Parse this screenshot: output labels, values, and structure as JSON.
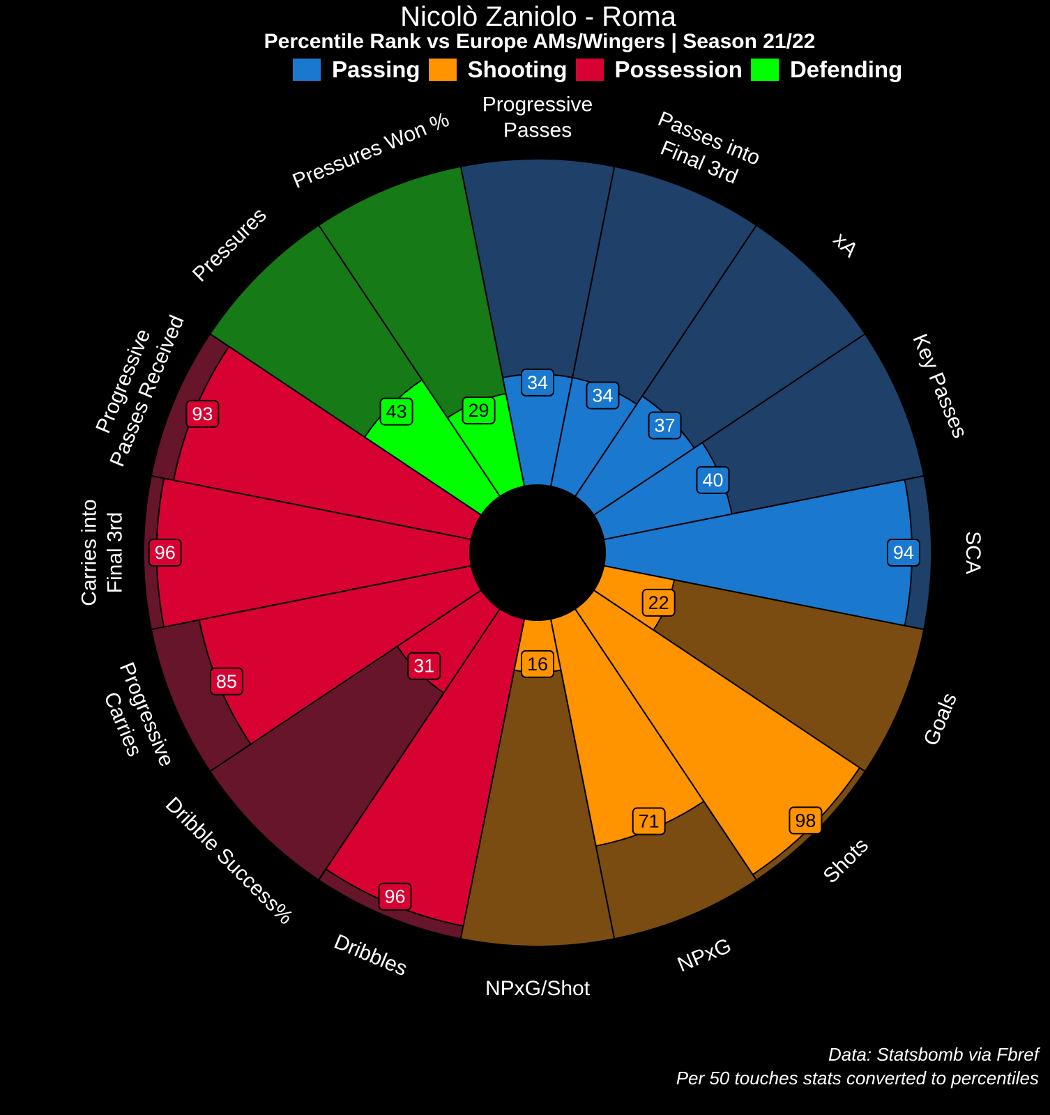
{
  "title": "Nicolò Zaniolo - Roma",
  "subtitle": "Percentile Rank vs Europe AMs/Wingers | Season 21/22",
  "legend": [
    {
      "label": "Passing",
      "color": "#1a78cf"
    },
    {
      "label": "Shooting",
      "color": "#ff9300"
    },
    {
      "label": "Possession",
      "color": "#d70232"
    },
    {
      "label": "Defending",
      "color": "#00ff00"
    }
  ],
  "footer": {
    "line1": "Data: Statsbomb via Fbref",
    "line2": "Per 50 touches stats converted to percentiles"
  },
  "chart_data": {
    "type": "pizza",
    "range": [
      0,
      100
    ],
    "categories": [
      {
        "name": "Passing",
        "color": "#1a78cf",
        "background": "#1f4068"
      },
      {
        "name": "Shooting",
        "color": "#ff9300",
        "background": "#7a4c12"
      },
      {
        "name": "Possession",
        "color": "#d70232",
        "background": "#66152a"
      },
      {
        "name": "Defending",
        "color": "#00ff00",
        "background": "#167a16"
      }
    ],
    "params": [
      {
        "label": "SCA",
        "lines": [
          "SCA"
        ],
        "value": 94,
        "category": "Passing"
      },
      {
        "label": "Key Passes",
        "lines": [
          "Key Passes"
        ],
        "value": 40,
        "category": "Passing"
      },
      {
        "label": "xA",
        "lines": [
          "xA"
        ],
        "value": 37,
        "category": "Passing"
      },
      {
        "label": "Passes into Final 3rd",
        "lines": [
          "Passes into",
          "Final 3rd"
        ],
        "value": 34,
        "category": "Passing"
      },
      {
        "label": "Progressive Passes",
        "lines": [
          "Progressive",
          "Passes"
        ],
        "value": 34,
        "category": "Passing"
      },
      {
        "label": "Pressures Won %",
        "lines": [
          "Pressures Won %"
        ],
        "value": 29,
        "category": "Defending"
      },
      {
        "label": "Pressures",
        "lines": [
          "Pressures"
        ],
        "value": 43,
        "category": "Defending"
      },
      {
        "label": "Progressive Passes Received",
        "lines": [
          "Progressive",
          "Passes Received"
        ],
        "value": 93,
        "category": "Possession"
      },
      {
        "label": "Carries into Final 3rd",
        "lines": [
          "Carries into",
          "Final 3rd"
        ],
        "value": 96,
        "category": "Possession"
      },
      {
        "label": "Progressive Carries",
        "lines": [
          "Progressive",
          "Carries"
        ],
        "value": 85,
        "category": "Possession"
      },
      {
        "label": "Dribble Success%",
        "lines": [
          "Dribble Success%"
        ],
        "value": 31,
        "category": "Possession"
      },
      {
        "label": "Dribbles",
        "lines": [
          "Dribbles"
        ],
        "value": 96,
        "category": "Possession"
      },
      {
        "label": "NPxG/Shot",
        "lines": [
          "NPxG/Shot"
        ],
        "value": 16,
        "category": "Shooting"
      },
      {
        "label": "NPxG",
        "lines": [
          "NPxG"
        ],
        "value": 71,
        "category": "Shooting"
      },
      {
        "label": "Shots",
        "lines": [
          "Shots"
        ],
        "value": 98,
        "category": "Shooting"
      },
      {
        "label": "Goals",
        "lines": [
          "Goals"
        ],
        "value": 22,
        "category": "Shooting"
      }
    ]
  }
}
